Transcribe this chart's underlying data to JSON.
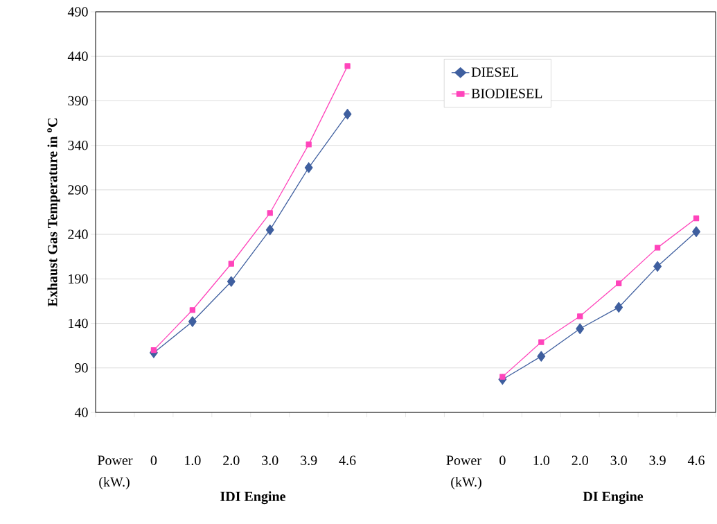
{
  "chart_data": {
    "type": "line",
    "ylabel": "Exhaust Gas Temperature in $^{o}$C",
    "categories": [
      "Power",
      "0",
      "1.0",
      "2.0",
      "3.0",
      "3.9",
      "4.6",
      null,
      null,
      "Power",
      "0",
      "1.0",
      "2.0",
      "3.0",
      "3.9",
      "4.6"
    ],
    "series": [
      {
        "name": "DIESEL",
        "color": "#3f5f9f",
        "marker": "diamond",
        "values": [
          null,
          107,
          142,
          187,
          245,
          315,
          375,
          null,
          null,
          null,
          77,
          103,
          134,
          158,
          204,
          243
        ]
      },
      {
        "name": "BIODIESEL",
        "color": "#ff44bb",
        "marker": "square",
        "values": [
          null,
          110,
          155,
          207,
          264,
          341,
          429,
          null,
          null,
          null,
          80,
          119,
          148,
          185,
          225,
          258
        ]
      }
    ],
    "ylim": [
      40,
      490
    ],
    "yticks": [
      40,
      90,
      140,
      190,
      240,
      290,
      340,
      390,
      440,
      490
    ],
    "grid": "y",
    "legend": "top right",
    "annotations": [
      "(kW.)",
      "IDI Engine",
      "(kW.)",
      "DI Engine"
    ]
  }
}
